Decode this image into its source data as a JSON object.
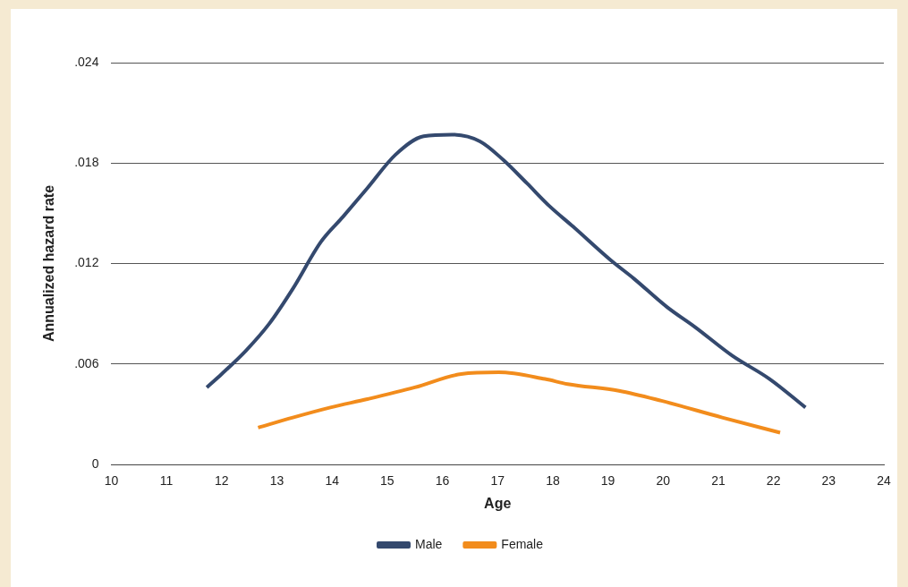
{
  "chart_data": {
    "type": "line",
    "xlabel": "Age",
    "ylabel": "Annualized hazard rate",
    "xlim": [
      10,
      24
    ],
    "xticks": [
      10,
      11,
      12,
      13,
      14,
      15,
      16,
      17,
      18,
      19,
      20,
      21,
      22,
      23,
      24
    ],
    "ylim": [
      0,
      0.024
    ],
    "yticks": [
      0,
      {
        "value": 0.006,
        "label": ".006"
      },
      {
        "value": 0.012,
        "label": ".012"
      },
      {
        "value": 0.018,
        "label": ".018"
      },
      {
        "value": 0.024,
        "label": ".024"
      }
    ],
    "grid": "y",
    "legend": "bottom",
    "marker": "none",
    "line_style": "solid",
    "series": [
      {
        "name": "Male",
        "color": "#34496e",
        "x": [
          11.73,
          12.0,
          12.44,
          12.86,
          13.29,
          13.8,
          14.2,
          14.64,
          15.15,
          15.66,
          16.17,
          16.68,
          17.1,
          17.53,
          17.95,
          18.37,
          19.05,
          19.47,
          20.07,
          20.58,
          21.25,
          21.93,
          22.58
        ],
        "values": [
          0.0046,
          0.0054,
          0.0068,
          0.0084,
          0.0105,
          0.0133,
          0.0148,
          0.0165,
          0.0185,
          0.0196,
          0.0197,
          0.0193,
          0.0182,
          0.0168,
          0.0154,
          0.0142,
          0.0122,
          0.0111,
          0.0094,
          0.0082,
          0.0065,
          0.0051,
          0.0034
        ]
      },
      {
        "name": "Female",
        "color": "#f28c1c",
        "x": [
          12.66,
          13.29,
          13.97,
          14.64,
          15.5,
          16.34,
          17.02,
          17.86,
          18.27,
          19.2,
          19.97,
          21.07,
          22.12
        ],
        "values": [
          0.0022,
          0.0028,
          0.0034,
          0.0039,
          0.0046,
          0.0054,
          0.0055,
          0.0051,
          0.0048,
          0.0044,
          0.0038,
          0.0028,
          0.0019
        ]
      }
    ]
  }
}
